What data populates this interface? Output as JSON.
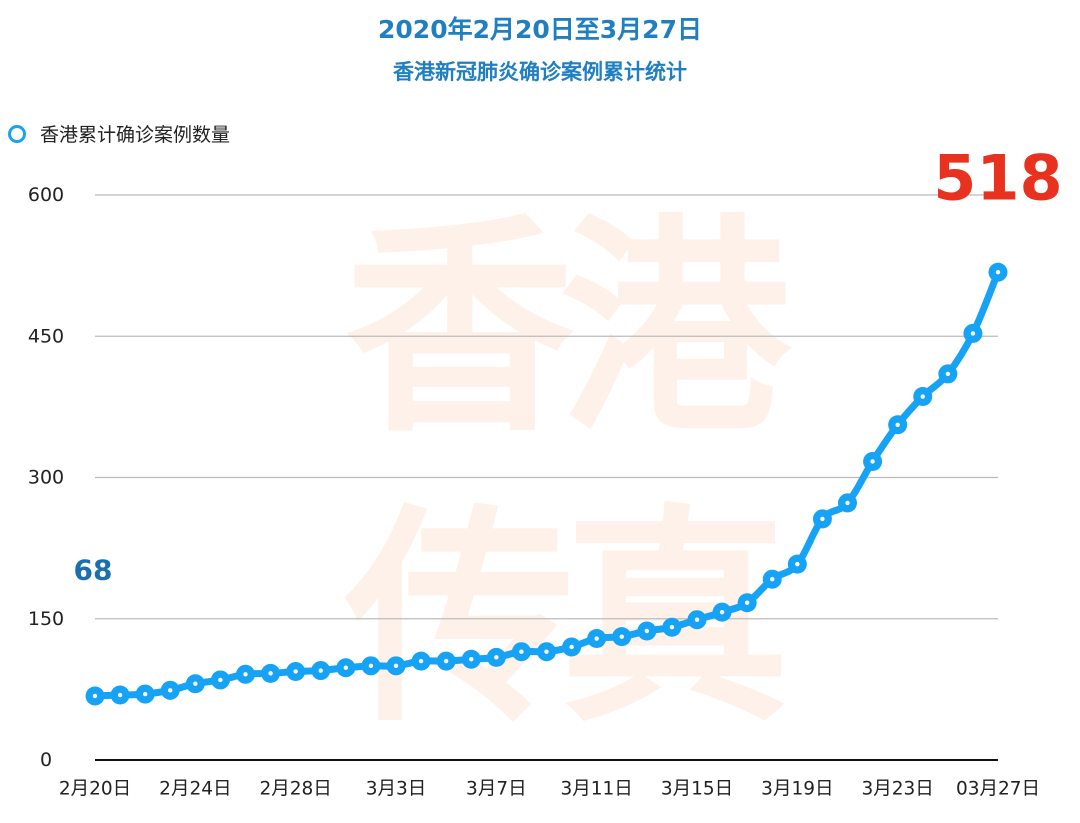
{
  "title": "2020年2月20日至3月27日",
  "subtitle": "香港新冠肺炎确诊案例累计统计",
  "legend": {
    "label": "香港累计确诊案例数量"
  },
  "watermark": [
    "香",
    "港",
    "传",
    "真"
  ],
  "colors": {
    "line": "#16a2f5",
    "title": "#1f7fc1",
    "start_label": "#1a6fae",
    "end_label": "#e8321f",
    "grid": "#bbbbbb",
    "watermark": "#fdf1ea"
  },
  "chart_data": {
    "type": "line",
    "title": "2020年2月20日至3月27日",
    "subtitle": "香港新冠肺炎确诊案例累计统计",
    "xlabel": "",
    "ylabel": "",
    "ylim": [
      0,
      600
    ],
    "yticks": [
      0,
      150,
      300,
      450,
      600
    ],
    "grid": true,
    "legend_position": "top-left",
    "x": [
      "2月20日",
      "2月21日",
      "2月22日",
      "2月23日",
      "2月24日",
      "2月25日",
      "2月26日",
      "2月27日",
      "2月28日",
      "2月29日",
      "3月1日",
      "3月2日",
      "3月3日",
      "3月4日",
      "3月5日",
      "3月6日",
      "3月7日",
      "3月8日",
      "3月9日",
      "3月10日",
      "3月11日",
      "3月12日",
      "3月13日",
      "3月14日",
      "3月15日",
      "3月16日",
      "3月17日",
      "3月18日",
      "3月19日",
      "3月20日",
      "3月21日",
      "3月22日",
      "3月23日",
      "3月24日",
      "3月25日",
      "3月26日",
      "03月27日"
    ],
    "x_tick_labels": [
      "2月20日",
      "2月24日",
      "2月28日",
      "3月3日",
      "3月7日",
      "3月11日",
      "3月15日",
      "3月19日",
      "3月23日",
      "03月27日"
    ],
    "series": [
      {
        "name": "香港累计确诊案例数量",
        "values": [
          68,
          69,
          70,
          74,
          81,
          85,
          91,
          92,
          94,
          95,
          98,
          100,
          100,
          105,
          105,
          107,
          109,
          115,
          115,
          120,
          129,
          131,
          137,
          141,
          149,
          157,
          167,
          192,
          208,
          256,
          273,
          317,
          356,
          386,
          410,
          453,
          518
        ]
      }
    ],
    "annotations": [
      {
        "text": "68",
        "x": "2月20日",
        "value": 68
      },
      {
        "text": "518",
        "x": "03月27日",
        "value": 518
      }
    ]
  }
}
